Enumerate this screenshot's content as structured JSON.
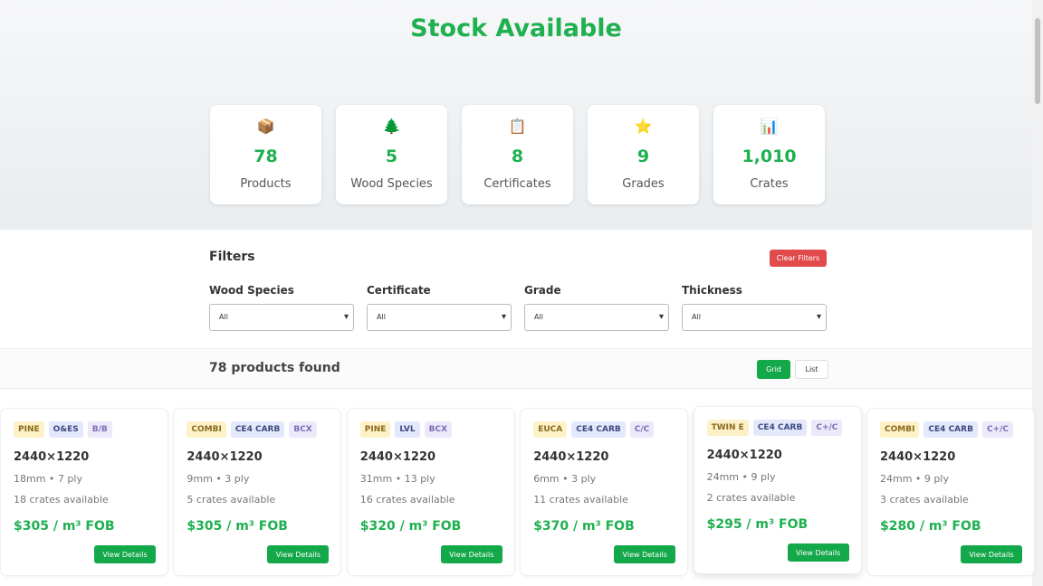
{
  "header": {
    "title": "Stock Available"
  },
  "stats": [
    {
      "icon": "📦",
      "value": "78",
      "label": "Products"
    },
    {
      "icon": "🌲",
      "value": "5",
      "label": "Wood Species"
    },
    {
      "icon": "📋",
      "value": "8",
      "label": "Certificates"
    },
    {
      "icon": "⭐",
      "value": "9",
      "label": "Grades"
    },
    {
      "icon": "📊",
      "value": "1,010",
      "label": "Crates"
    }
  ],
  "filters": {
    "title": "Filters",
    "clear": "Clear Filters",
    "fields": [
      {
        "label": "Wood Species",
        "value": "All"
      },
      {
        "label": "Certificate",
        "value": "All"
      },
      {
        "label": "Grade",
        "value": "All"
      },
      {
        "label": "Thickness",
        "value": "All"
      }
    ]
  },
  "results": {
    "count": "78 products found",
    "views": [
      "Grid",
      "List"
    ]
  },
  "products": [
    {
      "tags": [
        "PINE",
        "O&ES",
        "B/B"
      ],
      "size": "2440×1220",
      "spec": "18mm • 7 ply",
      "crates": "18 crates available",
      "price": "$305 / m³ FOB",
      "action": "View Details"
    },
    {
      "tags": [
        "COMBI",
        "CE4 CARB",
        "BCX"
      ],
      "size": "2440×1220",
      "spec": "9mm • 3 ply",
      "crates": "5 crates available",
      "price": "$305 / m³ FOB",
      "action": "View Details"
    },
    {
      "tags": [
        "PINE",
        "LVL",
        "BCX"
      ],
      "size": "2440×1220",
      "spec": "31mm • 13 ply",
      "crates": "16 crates available",
      "price": "$320 / m³ FOB",
      "action": "View Details"
    },
    {
      "tags": [
        "EUCA",
        "CE4 CARB",
        "C/C"
      ],
      "size": "2440×1220",
      "spec": "6mm • 3 ply",
      "crates": "11 crates available",
      "price": "$370 / m³ FOB",
      "action": "View Details"
    },
    {
      "tags": [
        "TWIN E",
        "CE4 CARB",
        "C+/C"
      ],
      "size": "2440×1220",
      "spec": "24mm • 9 ply",
      "crates": "2 crates available",
      "price": "$295 / m³ FOB",
      "action": "View Details"
    },
    {
      "tags": [
        "COMBI",
        "CE4 CARB",
        "C+/C"
      ],
      "size": "2440×1220",
      "spec": "24mm • 9 ply",
      "crates": "3 crates available",
      "price": "$280 / m³ FOB",
      "action": "View Details"
    }
  ]
}
